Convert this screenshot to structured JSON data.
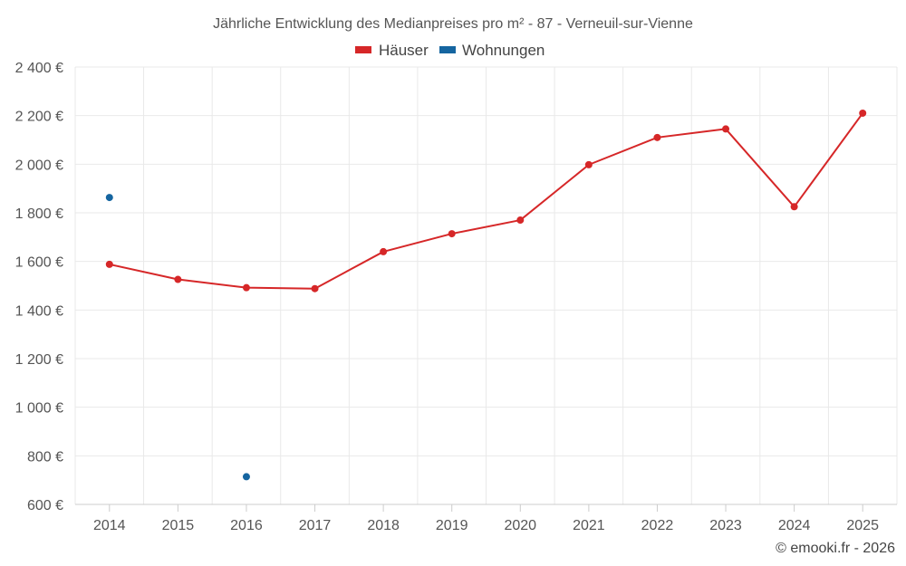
{
  "chart_data": {
    "type": "line",
    "title": "Jährliche Entwicklung des Medianpreises pro m² - 87 - Verneuil-sur-Vienne",
    "categories": [
      "2014",
      "2015",
      "2016",
      "2017",
      "2018",
      "2019",
      "2020",
      "2021",
      "2022",
      "2023",
      "2024",
      "2025"
    ],
    "y_ticks": [
      600,
      800,
      1000,
      1200,
      1400,
      1600,
      1800,
      2000,
      2200,
      2400
    ],
    "y_tick_labels": [
      "600 €",
      "800 €",
      "1 000 €",
      "1 200 €",
      "1 400 €",
      "1 600 €",
      "1 800 €",
      "2 000 €",
      "2 200 €",
      "2 400 €"
    ],
    "ylim": [
      600,
      2400
    ],
    "xlabel": "",
    "ylabel": "",
    "grid": true,
    "legend_position": "top-center",
    "series": [
      {
        "name": "Häuser",
        "color": "#d62728",
        "values": [
          1588,
          1526,
          1492,
          1488,
          1640,
          1714,
          1770,
          1998,
          2110,
          2145,
          1825,
          2210
        ]
      },
      {
        "name": "Wohnungen",
        "color": "#1565a0",
        "values": [
          1863,
          null,
          714,
          null,
          null,
          null,
          null,
          null,
          null,
          null,
          null,
          null
        ]
      }
    ],
    "credit": "© emooki.fr - 2026"
  }
}
